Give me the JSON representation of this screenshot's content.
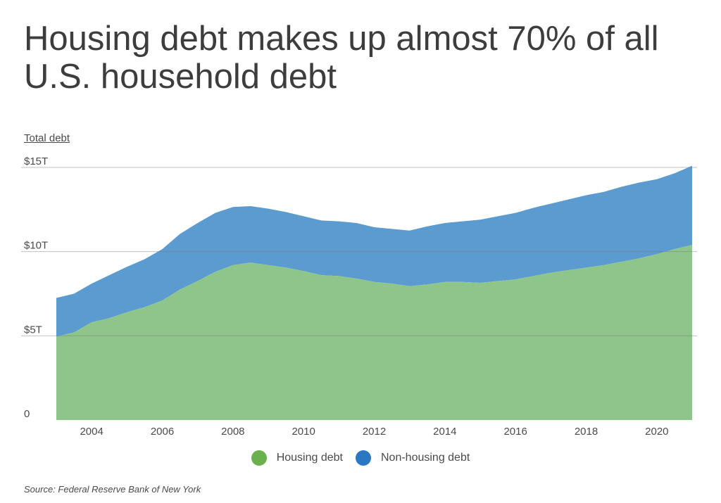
{
  "title": "Housing debt makes up almost 70% of all U.S. household debt",
  "source": "Source:  Federal Reserve Bank of New York",
  "colors": {
    "housing": "#8dc58a",
    "non_housing": "#5b9bd0",
    "housing_legend": "#6ab04c",
    "non_housing_legend": "#2b78c2"
  },
  "chart_data": {
    "type": "area",
    "stacked": true,
    "ylabel": "Total debt",
    "ylim": [
      0,
      15
    ],
    "xlim": [
      2003.0,
      2021.0
    ],
    "yticks": [
      {
        "value": 0,
        "label": "0"
      },
      {
        "value": 5,
        "label": "$5T"
      },
      {
        "value": 10,
        "label": "$10T"
      },
      {
        "value": 15,
        "label": "$15T"
      }
    ],
    "xticks": [
      "2004",
      "2006",
      "2008",
      "2010",
      "2012",
      "2014",
      "2016",
      "2018",
      "2020"
    ],
    "grid": "horizontal",
    "legend_position": "bottom-center",
    "x": [
      2003.0,
      2003.5,
      2004.0,
      2004.5,
      2005.0,
      2005.5,
      2006.0,
      2006.5,
      2007.0,
      2007.5,
      2008.0,
      2008.5,
      2009.0,
      2009.5,
      2010.0,
      2010.5,
      2011.0,
      2011.5,
      2012.0,
      2012.5,
      2013.0,
      2013.5,
      2014.0,
      2014.5,
      2015.0,
      2015.5,
      2016.0,
      2016.5,
      2017.0,
      2017.5,
      2018.0,
      2018.5,
      2019.0,
      2019.5,
      2020.0,
      2020.5,
      2021.0
    ],
    "series": [
      {
        "name": "Housing debt",
        "values": [
          4.95,
          5.2,
          5.8,
          6.05,
          6.4,
          6.7,
          7.1,
          7.75,
          8.25,
          8.8,
          9.2,
          9.35,
          9.2,
          9.05,
          8.85,
          8.6,
          8.55,
          8.4,
          8.2,
          8.1,
          7.95,
          8.05,
          8.2,
          8.2,
          8.15,
          8.25,
          8.35,
          8.55,
          8.75,
          8.9,
          9.05,
          9.2,
          9.4,
          9.6,
          9.85,
          10.15,
          10.4
        ]
      },
      {
        "name": "Non-housing debt",
        "values": [
          2.3,
          2.3,
          2.3,
          2.55,
          2.7,
          2.85,
          3.05,
          3.3,
          3.45,
          3.5,
          3.45,
          3.35,
          3.35,
          3.3,
          3.25,
          3.25,
          3.25,
          3.3,
          3.25,
          3.25,
          3.3,
          3.45,
          3.5,
          3.6,
          3.75,
          3.85,
          3.95,
          4.05,
          4.1,
          4.2,
          4.3,
          4.35,
          4.45,
          4.5,
          4.45,
          4.5,
          4.7
        ]
      }
    ]
  }
}
